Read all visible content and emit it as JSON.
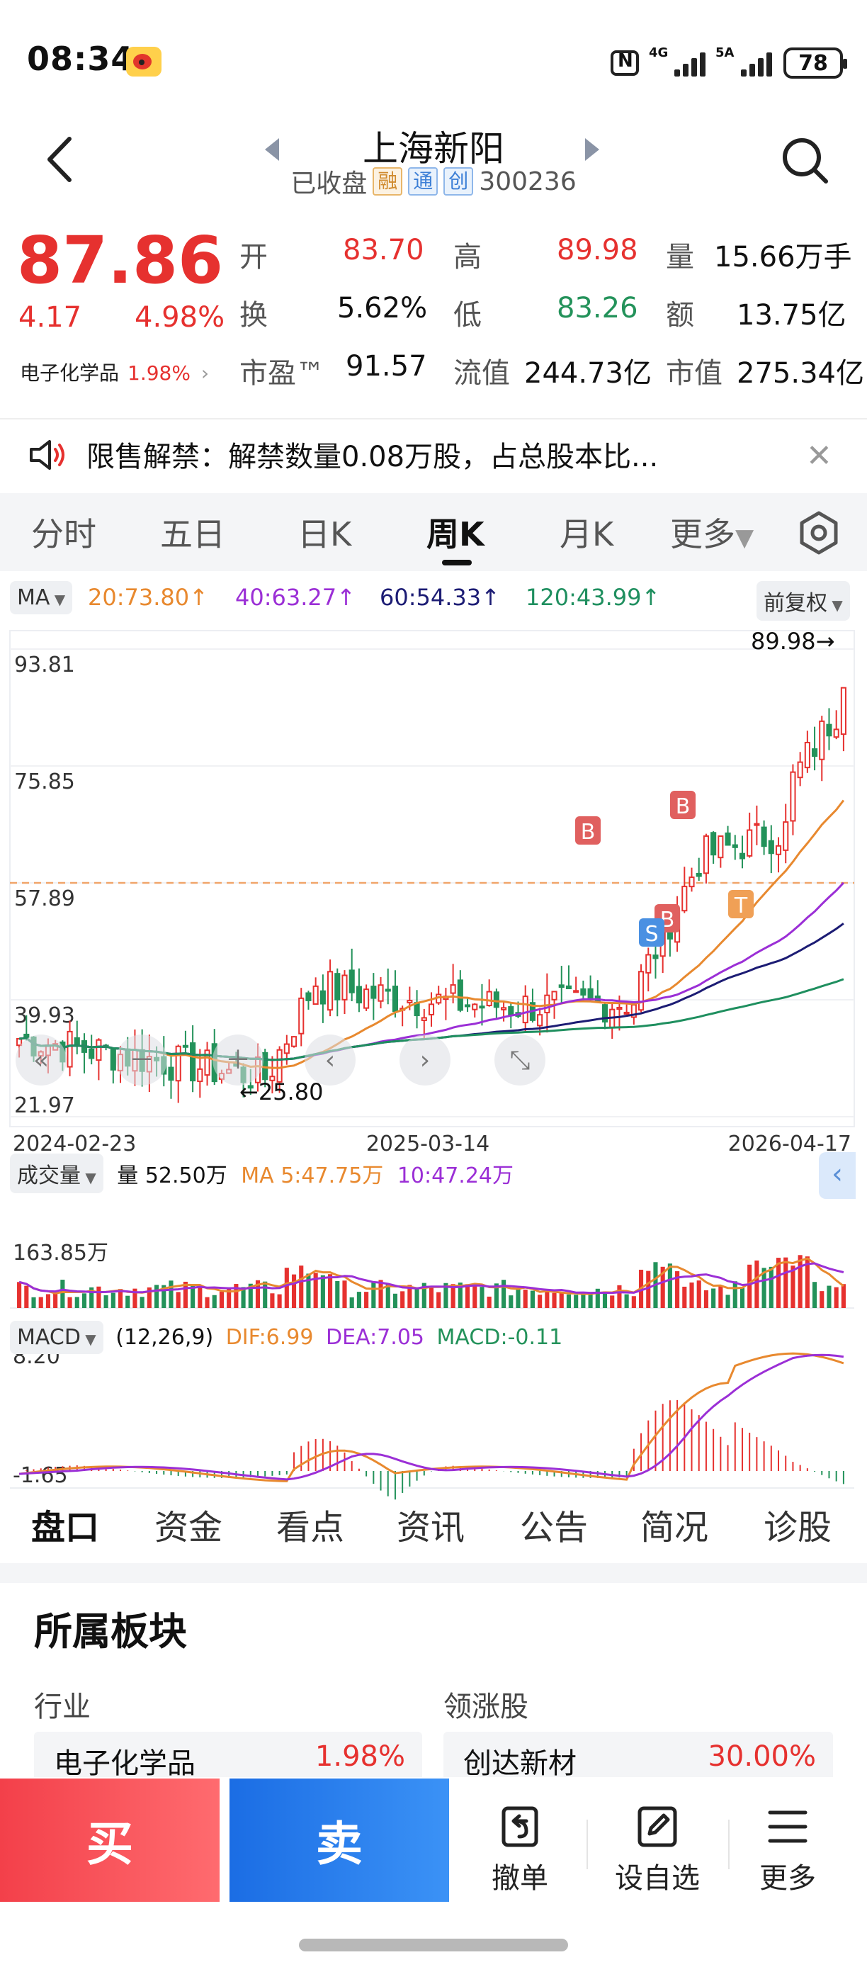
{
  "status": {
    "time": "08:34",
    "net1": "4G",
    "net2": "5A",
    "battery": "78"
  },
  "header": {
    "name": "上海新阳",
    "state": "已收盘",
    "tags": [
      "融",
      "通",
      "创"
    ],
    "code": "300236"
  },
  "quote": {
    "price": "87.86",
    "change": "4.17",
    "change_pct": "4.98%",
    "sector": "电子化学品",
    "sector_pct": "1.98%",
    "open_label": "开",
    "open": "83.70",
    "high_label": "高",
    "high": "89.98",
    "vol_label": "量",
    "vol": "15.66万手",
    "turn_label": "换",
    "turn": "5.62%",
    "low_label": "低",
    "low": "83.26",
    "amt_label": "额",
    "amt": "13.75亿",
    "pe_label": "市盈™",
    "pe": "91.57",
    "float_label": "流值",
    "float": "244.73亿",
    "cap_label": "市值",
    "cap": "275.34亿"
  },
  "notice": {
    "text": "限售解禁：解禁数量0.08万股，占总股本比..."
  },
  "period_tabs": [
    "分时",
    "五日",
    "日K",
    "周K",
    "月K",
    "更多"
  ],
  "ma_bar": {
    "selector": "MA",
    "ma20": "20:73.80↑",
    "ma40": "40:63.27↑",
    "ma60": "60:54.33↑",
    "ma120": "120:43.99↑",
    "adjust": "前复权"
  },
  "colors": {
    "up": "#e6312f",
    "down": "#23925a",
    "ma20": "#e8892f",
    "ma40": "#9b2fd6",
    "ma60": "#1c1c74",
    "ma120": "#1f8f5f"
  },
  "chart_data": [
    {
      "type": "candlestick",
      "y_ticks": [
        "93.81",
        "75.85",
        "57.89",
        "39.93",
        "21.97"
      ],
      "x_ticks": [
        "2024-02-23",
        "2025-03-14",
        "2026-04-17"
      ],
      "max_label": "89.98→",
      "min_label": "←25.80",
      "reference_line": 57.89,
      "markers": [
        "B",
        "B",
        "B",
        "S",
        "T"
      ],
      "ylim": [
        21.97,
        93.81
      ]
    },
    {
      "type": "bar",
      "title": "成交量",
      "volume": "量 52.50万",
      "ma5": "MA 5:47.75万",
      "ma10": "10:47.24万",
      "y_max": "163.85万"
    },
    {
      "type": "bar",
      "title": "MACD",
      "params": "(12,26,9)",
      "dif": "DIF:6.99",
      "dea": "DEA:7.05",
      "macd": "MACD:-0.11",
      "y_top": "8.20",
      "y_bottom": "-1.65"
    }
  ],
  "section_tabs": [
    "盘口",
    "资金",
    "看点",
    "资讯",
    "公告",
    "简况",
    "诊股"
  ],
  "sectors": {
    "title": "所属板块",
    "industry_head": "行业",
    "leader_head": "领涨股",
    "industry_name": "电子化学品",
    "industry_pct": "1.98%",
    "leader_name": "创达新材",
    "leader_pct": "30.00%"
  },
  "actions": {
    "buy": "买",
    "sell": "卖",
    "cancel": "撤单",
    "watch": "设自选",
    "more": "更多"
  }
}
